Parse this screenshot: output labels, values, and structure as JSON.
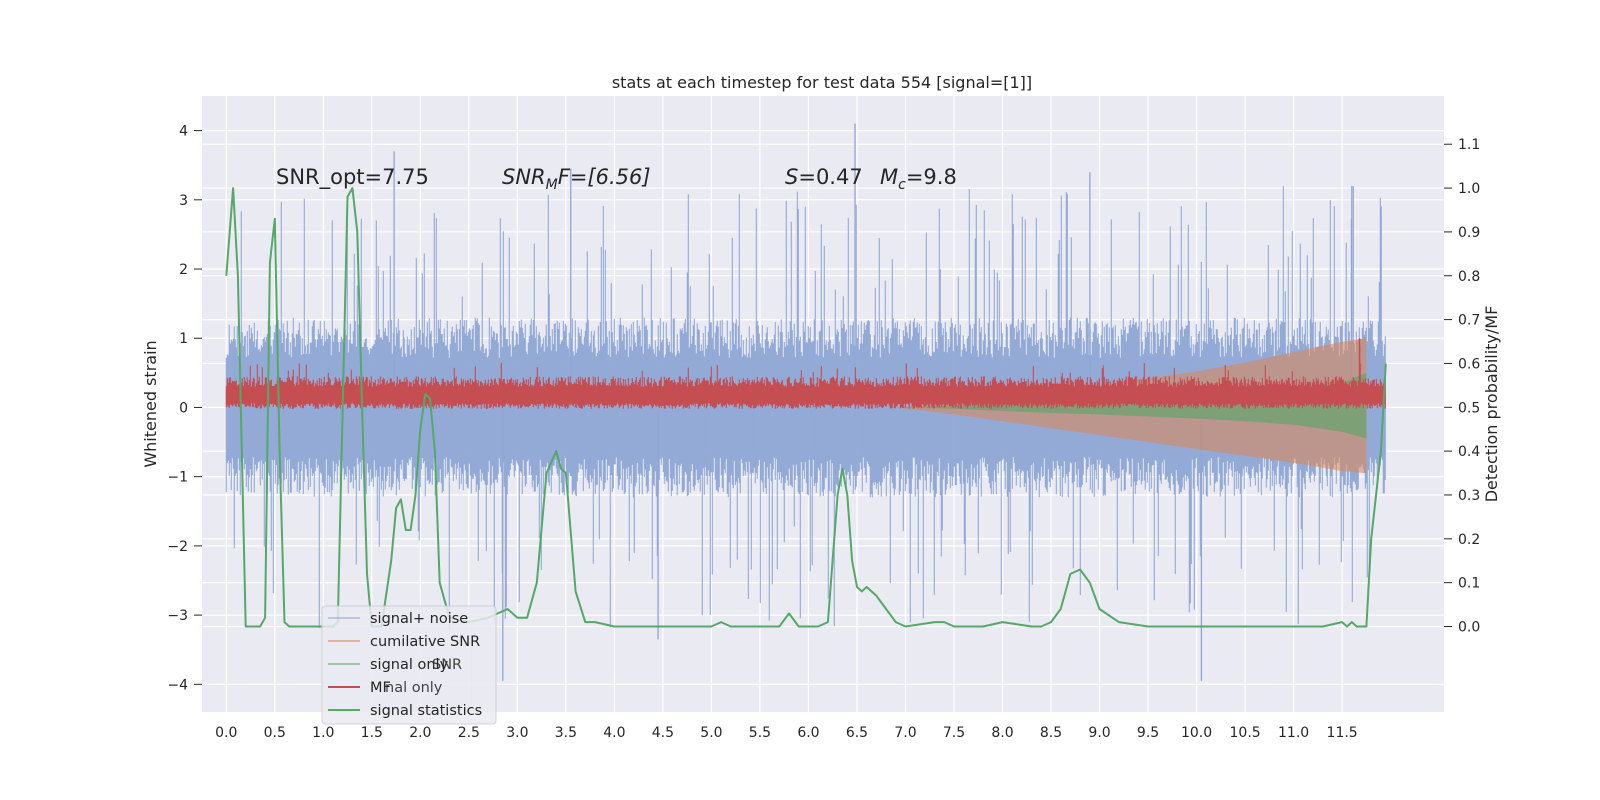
{
  "chart_data": {
    "type": "line",
    "title": "stats at each timestep for test data 554 [signal=[1]]",
    "xlabel": "",
    "ylabel": "Whitened strain",
    "ylabel_right": "Detection probability/MF",
    "xlim": [
      -0.25,
      12.55
    ],
    "ylim": [
      -4.4,
      4.5
    ],
    "ylim_right": [
      -0.195,
      1.21
    ],
    "x_ticks": [
      "0.0",
      "0.5",
      "1.0",
      "1.5",
      "2.0",
      "2.5",
      "3.0",
      "3.5",
      "4.0",
      "4.5",
      "5.0",
      "5.5",
      "6.0",
      "6.5",
      "7.0",
      "7.5",
      "8.0",
      "8.5",
      "9.0",
      "9.5",
      "10.0",
      "10.5",
      "11.0",
      "11.5"
    ],
    "y_ticks": [
      "4",
      "3",
      "2",
      "1",
      "0",
      "−1",
      "−2",
      "−3",
      "−4"
    ],
    "y_ticks_right": [
      "1.1",
      "1.0",
      "0.9",
      "0.8",
      "0.7",
      "0.6",
      "0.5",
      "0.4",
      "0.3",
      "0.2",
      "0.1",
      "0.0"
    ],
    "grid": true,
    "legend_position": "lower-left",
    "annotations": {
      "snr_opt": "SNR_opt=7.75",
      "snr_mf_main": "SNR",
      "snr_mf_sub": "M",
      "snr_mf_rest": "F=[6.56]",
      "s_main": "S",
      "s_rest": "=0.47",
      "mc_main": "M",
      "mc_sub": "c",
      "mc_rest": "=9.8"
    },
    "series": [
      {
        "name": "signal+ noise",
        "color": "#8fa6d4",
        "axis": "left",
        "description_values": "noise band approx ±1.3 with spikes to ±3.7",
        "x_range": [
          0.0,
          11.95
        ],
        "envelope": {
          "upper": 1.3,
          "lower": -1.3,
          "peak_max": 4.1,
          "peak_min": -3.95
        }
      },
      {
        "name": "cumilative SNR",
        "color": "#dd8452",
        "axis": "left",
        "x": [
          6.9,
          7.5,
          8.0,
          8.5,
          9.0,
          9.5,
          10.0,
          10.5,
          11.0,
          11.5,
          11.75
        ],
        "upper": [
          0.0,
          0.07,
          0.14,
          0.22,
          0.32,
          0.42,
          0.52,
          0.65,
          0.8,
          0.95,
          1.0
        ],
        "lower": [
          0.0,
          -0.1,
          -0.2,
          -0.3,
          -0.4,
          -0.5,
          -0.6,
          -0.7,
          -0.8,
          -0.92,
          -0.95
        ]
      },
      {
        "name": "signal only",
        "color": "#55a868",
        "axis": "left",
        "x": [
          7.0,
          7.5,
          8.0,
          8.5,
          9.0,
          9.5,
          10.0,
          10.5,
          11.0,
          11.5,
          11.75
        ],
        "upper": [
          0.0,
          0.03,
          0.06,
          0.09,
          0.12,
          0.15,
          0.18,
          0.22,
          0.27,
          0.35,
          0.5
        ],
        "lower": [
          0.0,
          -0.02,
          -0.05,
          -0.08,
          -0.1,
          -0.13,
          -0.16,
          -0.2,
          -0.25,
          -0.35,
          -0.45
        ]
      },
      {
        "name": "MF",
        "color": "#c44e52",
        "axis": "left",
        "x_range": [
          0.0,
          11.95
        ],
        "band": {
          "mean": 0.2,
          "upper": 0.45,
          "lower": -0.02,
          "peak_max": 1.0
        }
      },
      {
        "name": "signal statistics",
        "color": "#55a868",
        "axis": "right",
        "x": [
          0.0,
          0.07,
          0.12,
          0.2,
          0.35,
          0.4,
          0.45,
          0.5,
          0.55,
          0.6,
          0.65,
          0.7,
          0.8,
          1.0,
          1.1,
          1.15,
          1.25,
          1.3,
          1.35,
          1.4,
          1.45,
          1.5,
          1.55,
          1.6,
          1.7,
          1.75,
          1.8,
          1.85,
          1.9,
          1.95,
          2.0,
          2.05,
          2.1,
          2.15,
          2.2,
          2.3,
          2.5,
          2.7,
          2.9,
          3.0,
          3.1,
          3.2,
          3.3,
          3.4,
          3.45,
          3.5,
          3.6,
          3.7,
          3.8,
          4.0,
          4.5,
          5.0,
          5.1,
          5.2,
          5.4,
          5.6,
          5.7,
          5.8,
          5.9,
          6.0,
          6.1,
          6.2,
          6.3,
          6.35,
          6.4,
          6.45,
          6.5,
          6.55,
          6.6,
          6.7,
          6.8,
          6.9,
          7.0,
          7.3,
          7.4,
          7.5,
          7.8,
          8.0,
          8.3,
          8.4,
          8.5,
          8.6,
          8.7,
          8.8,
          8.9,
          9.0,
          9.2,
          9.5,
          10.0,
          10.5,
          11.0,
          11.2,
          11.3,
          11.5,
          11.55,
          11.6,
          11.65,
          11.7,
          11.75,
          11.8,
          11.9,
          11.95
        ],
        "y": [
          0.8,
          1.0,
          0.8,
          0.0,
          0.0,
          0.02,
          0.83,
          0.93,
          0.4,
          0.01,
          0.0,
          0.0,
          0.0,
          0.0,
          0.0,
          0.01,
          0.98,
          1.0,
          0.9,
          0.5,
          0.12,
          0.0,
          0.0,
          0.0,
          0.15,
          0.27,
          0.29,
          0.22,
          0.22,
          0.3,
          0.45,
          0.53,
          0.52,
          0.4,
          0.1,
          0.02,
          0.01,
          0.02,
          0.04,
          0.02,
          0.02,
          0.1,
          0.35,
          0.4,
          0.36,
          0.35,
          0.08,
          0.01,
          0.01,
          0.0,
          0.0,
          0.0,
          0.01,
          0.0,
          0.0,
          0.0,
          0.0,
          0.03,
          0.0,
          0.0,
          0.0,
          0.01,
          0.3,
          0.36,
          0.3,
          0.15,
          0.09,
          0.08,
          0.09,
          0.07,
          0.04,
          0.01,
          0.0,
          0.01,
          0.01,
          0.0,
          0.0,
          0.01,
          0.0,
          0.0,
          0.01,
          0.04,
          0.12,
          0.13,
          0.1,
          0.04,
          0.01,
          0.0,
          0.0,
          0.0,
          0.0,
          0.0,
          0.0,
          0.01,
          0.0,
          0.01,
          0.0,
          0.0,
          0.0,
          0.2,
          0.4,
          0.6
        ]
      }
    ],
    "legend": [
      {
        "label": "signal+ noise",
        "color": "#8fa6d4"
      },
      {
        "label": "cumilative SNR",
        "color": "#dd8452"
      },
      {
        "label": "signal only",
        "color": "#55a868"
      },
      {
        "label": "MF",
        "color": "#c44e52"
      },
      {
        "label": "signal statistics",
        "color": "#55a868"
      }
    ],
    "legend_overlap_ghosts": [
      {
        "label": "SNR"
      },
      {
        "label": "nal only"
      }
    ],
    "colors": {
      "plot_background": "#eaeaf2",
      "grid": "#ffffff",
      "signal_noise": "#8fa6d4",
      "cumulative_snr": "#dd8452",
      "signal_only": "#55a868",
      "mf": "#c44e52",
      "signal_statistics": "#55a868",
      "text": "#262626"
    }
  }
}
